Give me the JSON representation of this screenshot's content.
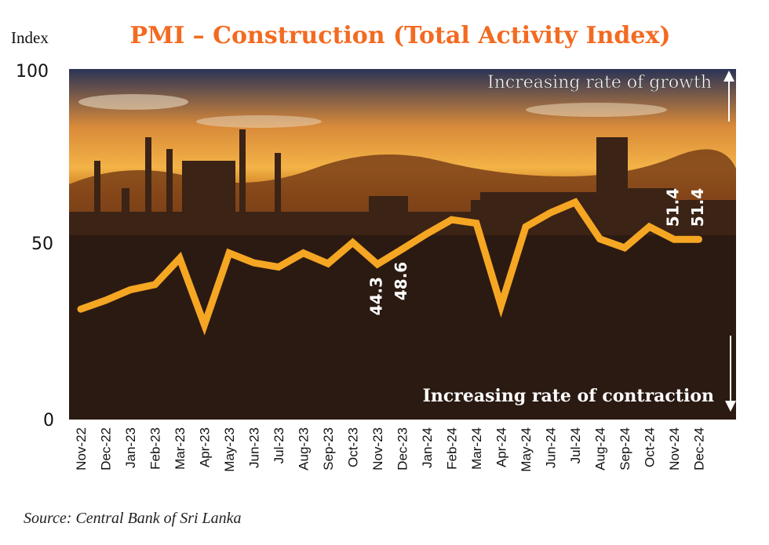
{
  "chart_data": {
    "type": "line",
    "title": "PMI – Construction (Total Activity Index)",
    "ylabel": "Index",
    "ylim": [
      0,
      100
    ],
    "yticks": [
      "0",
      "50",
      "100"
    ],
    "categories": [
      "Nov-22",
      "Dec-22",
      "Jan-23",
      "Feb-23",
      "Mar-23",
      "Apr-23",
      "May-23",
      "Jun-23",
      "Jul-23",
      "Aug-23",
      "Sep-23",
      "Oct-23",
      "Nov-23",
      "Dec-23",
      "Jan-24",
      "Feb-24",
      "Mar-24",
      "Apr-24",
      "May-24",
      "Jun-24",
      "Jul-24",
      "Aug-24",
      "Sep-24",
      "Oct-24",
      "Nov-24",
      "Dec-24"
    ],
    "values": [
      31.5,
      34.0,
      37.0,
      38.5,
      46.0,
      27.0,
      47.5,
      44.7,
      43.5,
      47.5,
      44.5,
      50.5,
      44.3,
      48.6,
      53.0,
      57.0,
      56.0,
      32.5,
      55.0,
      59.0,
      62.0,
      51.5,
      49.0,
      55.0,
      51.4,
      51.4
    ],
    "annotations": [
      {
        "index": 12,
        "label": "44.3"
      },
      {
        "index": 13,
        "label": "48.6"
      },
      {
        "index": 24,
        "label": "51.4"
      },
      {
        "index": 25,
        "label": "51.4"
      }
    ],
    "growth_label": "Increasing rate of growth",
    "contraction_label": "Increasing rate of contraction",
    "colors": {
      "line": "#f5a623",
      "title": "#f26b21",
      "label": "#ffffff",
      "sky_top": "#1f2a4a",
      "sky_mid": "#f0a840",
      "ground": "#2b1a12"
    }
  },
  "source": "Source: Central Bank of Sri Lanka"
}
